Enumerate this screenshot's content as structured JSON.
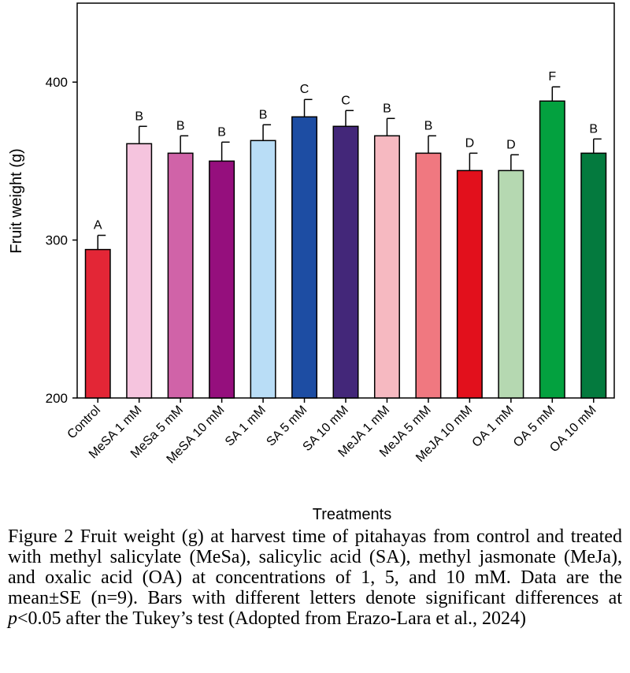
{
  "chart_data": {
    "type": "bar",
    "title": "",
    "xlabel": "Treatments",
    "ylabel": "Fruit weight (g)",
    "ylim": [
      200,
      450
    ],
    "yticks": [
      200,
      300,
      400
    ],
    "grid": false,
    "categories": [
      "Control",
      "MeSA 1 mM",
      "MeSa 5 mM",
      "MeSA 10 mM",
      "SA 1 mM",
      "SA 5 mM",
      "SA 10 mM",
      "MeJA 1 mM",
      "MeJA 5 mM",
      "MeJA 10 mM",
      "OA 1 mM",
      "OA 5 mM",
      "OA 10 mM"
    ],
    "values": [
      294,
      361,
      355,
      350,
      363,
      378,
      372,
      366,
      355,
      344,
      344,
      388,
      355
    ],
    "errors": [
      9,
      11,
      11,
      12,
      10,
      11,
      10,
      11,
      11,
      11,
      10,
      9,
      9
    ],
    "letters": [
      "A",
      "B",
      "B",
      "B",
      "B",
      "C",
      "C",
      "B",
      "B",
      "D",
      "D",
      "F",
      "B"
    ],
    "colors": [
      "#e32636",
      "#f5c4de",
      "#d063a8",
      "#950f7d",
      "#b9ddf6",
      "#1d4da3",
      "#432779",
      "#f6b9c1",
      "#f07880",
      "#e2101c",
      "#b5d8b1",
      "#03a13f",
      "#047a3e"
    ]
  },
  "caption": {
    "prefix": "Figure 2 Fruit weight (g) at harvest time of pitahayas from control and treated with methyl salicylate (MeSa), salicylic acid (SA), methyl jasmonate (MeJa), and oxalic acid (OA) at concentrations of 1, 5, and 10 mM. Data are the mean±SE (n=9). Bars with different letters denote significant differences at ",
    "p_symbol": "p",
    "suffix": "<0.05 after the Tukey’s test (Adopted from Erazo-Lara et al., 2024)"
  }
}
